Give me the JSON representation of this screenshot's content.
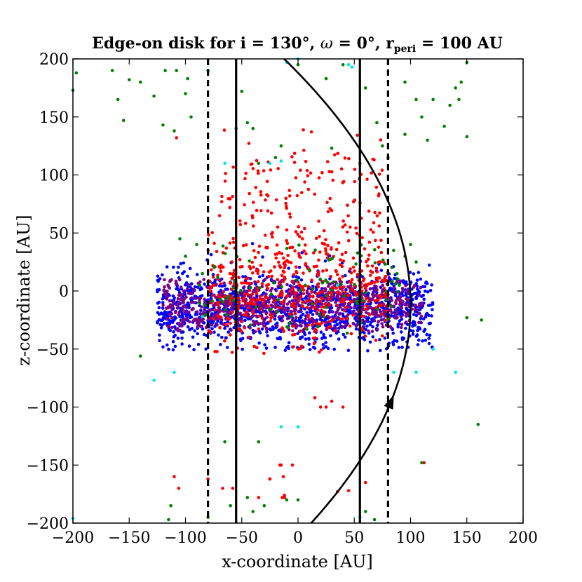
{
  "chart_data": {
    "type": "scatter",
    "title_parts": {
      "prefix": "Edge-on disk for i = 130°, ",
      "omega_symbol": "ω",
      "middle": " = 0°, r",
      "sub": "peri",
      "suffix": " = 100 AU"
    },
    "xlabel": "x-coordinate [AU]",
    "ylabel": "z-coordinate [AU]",
    "xlim": [
      -200,
      200
    ],
    "ylim": [
      -200,
      200
    ],
    "x_ticks": [
      -200,
      -150,
      -100,
      -50,
      0,
      50,
      100,
      150,
      200
    ],
    "y_ticks": [
      -200,
      -150,
      -100,
      -50,
      0,
      50,
      100,
      150,
      200
    ],
    "tick_labels_x": [
      "−200",
      "−150",
      "−100",
      "−50",
      "0",
      "50",
      "100",
      "150",
      "200"
    ],
    "tick_labels_y": [
      "−200",
      "−150",
      "−100",
      "−50",
      "0",
      "50",
      "100",
      "150",
      "200"
    ],
    "grid": false,
    "vertical_lines": [
      {
        "x": -80,
        "style": "dashed"
      },
      {
        "x": 80,
        "style": "dashed"
      },
      {
        "x": -55,
        "style": "solid"
      },
      {
        "x": 55,
        "style": "solid"
      }
    ],
    "orbit": {
      "type": "parabola",
      "r_peri": 100,
      "vertex_x": 100,
      "vertex_z": -12,
      "arrow_at": {
        "x": 62,
        "z": -95
      },
      "arrow_direction": "up"
    },
    "colors": {
      "purple": "#800080",
      "blue": "#0000ff",
      "red": "#ff0000",
      "green": "#008000",
      "cyan": "#00e5e5",
      "axes": "#000000"
    },
    "series": [
      {
        "color": "purple",
        "distributions": [
          {
            "n": 700,
            "x_range": [
              -120,
              110
            ],
            "z_center": -12,
            "z_sigma": 12,
            "z_min": -35,
            "z_max": 10
          }
        ]
      },
      {
        "color": "blue",
        "distributions": [
          {
            "n": 1300,
            "x_range": [
              -125,
              120
            ],
            "z_center": -15,
            "z_sigma": 16,
            "z_min": -52,
            "z_max": 45
          }
        ]
      },
      {
        "color": "red",
        "distributions": [
          {
            "n": 500,
            "x_range": [
              -80,
              80
            ],
            "z_center": 5,
            "z_sigma": 25,
            "z_min": -55,
            "z_max": 80
          },
          {
            "n": 120,
            "x_range": [
              -70,
              75
            ],
            "z_center": 90,
            "z_sigma": 22,
            "z_min": 50,
            "z_max": 140
          }
        ],
        "outliers": [
          [
            -108,
            132
          ],
          [
            -110,
            -160
          ],
          [
            -106,
            -170
          ],
          [
            -80,
            -162
          ],
          [
            -58,
            -170
          ],
          [
            -25,
            -162
          ],
          [
            -15,
            -150
          ],
          [
            -35,
            -178
          ],
          [
            -14,
            -178
          ],
          [
            -12,
            -178
          ],
          [
            -12,
            -176
          ],
          [
            -13,
            -160
          ],
          [
            -25,
            -162
          ],
          [
            -5,
            -150
          ],
          [
            -16,
            -150
          ],
          [
            15,
            -92
          ],
          [
            20,
            -100
          ],
          [
            30,
            -95
          ],
          [
            40,
            -100
          ],
          [
            35,
            -173
          ],
          [
            45,
            -172
          ],
          [
            112,
            -148
          ],
          [
            25,
            -100
          ],
          [
            -67,
            -170
          ],
          [
            60,
            -165
          ]
        ]
      },
      {
        "color": "green",
        "distributions": [
          {
            "n": 90,
            "x_range": [
              -90,
              90
            ],
            "z_center": 0,
            "z_sigma": 20,
            "z_min": -40,
            "z_max": 50
          }
        ],
        "outliers": [
          [
            -200,
            173
          ],
          [
            -197,
            188
          ],
          [
            -165,
            190
          ],
          [
            -150,
            182
          ],
          [
            -140,
            180
          ],
          [
            -118,
            190
          ],
          [
            -108,
            190
          ],
          [
            -98,
            183
          ],
          [
            -128,
            168
          ],
          [
            -160,
            165
          ],
          [
            -155,
            147
          ],
          [
            -120,
            143
          ],
          [
            -110,
            138
          ],
          [
            -100,
            170
          ],
          [
            -95,
            150
          ],
          [
            -80,
            190
          ],
          [
            -55,
            140
          ],
          [
            -45,
            145
          ],
          [
            -50,
            172
          ],
          [
            -40,
            140
          ],
          [
            -35,
            110
          ],
          [
            -20,
            115
          ],
          [
            -15,
            125
          ],
          [
            0,
            195
          ],
          [
            25,
            183
          ],
          [
            40,
            195
          ],
          [
            60,
            175
          ],
          [
            95,
            180
          ],
          [
            105,
            165
          ],
          [
            110,
            150
          ],
          [
            120,
            165
          ],
          [
            140,
            175
          ],
          [
            145,
            180
          ],
          [
            150,
            197
          ],
          [
            143,
            165
          ],
          [
            135,
            160
          ],
          [
            150,
            133
          ],
          [
            130,
            142
          ],
          [
            115,
            130
          ],
          [
            95,
            135
          ],
          [
            70,
            145
          ],
          [
            75,
            125
          ],
          [
            80,
            115
          ],
          [
            55,
            110
          ],
          [
            30,
            123
          ],
          [
            -140,
            -56
          ],
          [
            -113,
            -185
          ],
          [
            -115,
            -197
          ],
          [
            -80,
            -195
          ],
          [
            -60,
            -185
          ],
          [
            -45,
            -178
          ],
          [
            -65,
            -130
          ],
          [
            -40,
            -190
          ],
          [
            -30,
            -185
          ],
          [
            -10,
            -180
          ],
          [
            0,
            -180
          ],
          [
            -35,
            -130
          ],
          [
            60,
            -190
          ],
          [
            68,
            -197
          ],
          [
            80,
            -205
          ],
          [
            160,
            -115
          ],
          [
            163,
            -25
          ],
          [
            150,
            -23
          ],
          [
            110,
            -148
          ],
          [
            -100,
            30
          ],
          [
            -105,
            45
          ],
          [
            -90,
            40
          ],
          [
            -85,
            15
          ],
          [
            85,
            35
          ],
          [
            88,
            15
          ],
          [
            90,
            5
          ],
          [
            95,
            30
          ],
          [
            100,
            40
          ],
          [
            105,
            25
          ]
        ]
      },
      {
        "color": "cyan",
        "outliers": [
          [
            -200,
            -196
          ],
          [
            -128,
            -77
          ],
          [
            -110,
            -70
          ],
          [
            -85,
            -22
          ],
          [
            -80,
            -28
          ],
          [
            -65,
            110
          ],
          [
            -25,
            110
          ],
          [
            -15,
            112
          ],
          [
            -10,
            197
          ],
          [
            0,
            200
          ],
          [
            45,
            195
          ],
          [
            48,
            193
          ],
          [
            -15,
            -117
          ],
          [
            0,
            -117
          ],
          [
            35,
            5
          ],
          [
            85,
            -70
          ],
          [
            105,
            -70
          ],
          [
            120,
            -50
          ],
          [
            140,
            -70
          ],
          [
            55,
            -195
          ]
        ]
      }
    ]
  }
}
